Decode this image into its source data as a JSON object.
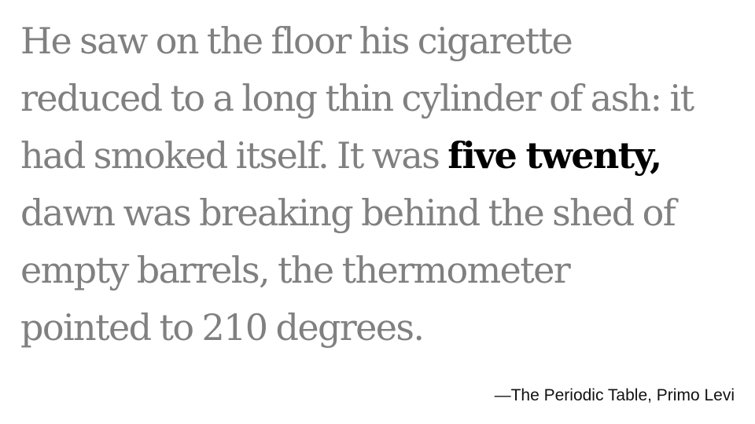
{
  "quote": {
    "lines": [
      "He saw on the floor his cigarette",
      "reduced to a long thin cylinder of ash: it",
      "had smoked itself. It was ",
      "dawn was breaking behind the shed of",
      "empty barrels, the thermometer",
      "pointed to 210 degrees."
    ],
    "emphasis": "five twenty,"
  },
  "attribution": "—The Periodic Table, Primo Levi",
  "colors": {
    "body_text": "#808080",
    "emphasis_text": "#000000",
    "attribution_text": "#111111",
    "background": "#ffffff"
  }
}
